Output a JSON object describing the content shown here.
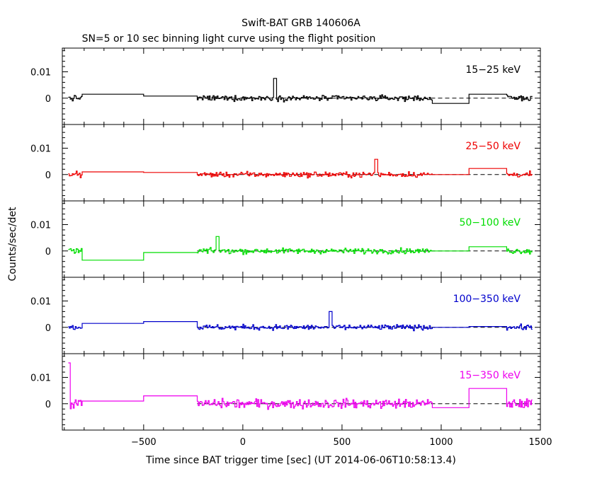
{
  "title": "Swift-BAT GRB 140606A",
  "subtitle": "SN=5 or 10 sec binning light curve using the flight position",
  "colors": {
    "axis": "#000000",
    "panels": [
      "#000000",
      "#ee0000",
      "#00dd00",
      "#0000cc",
      "#ee00ee"
    ]
  },
  "chart_data": {
    "type": "line",
    "title": "Swift-BAT GRB 140606A",
    "subtitle": "SN=5 or 10 sec binning light curve using the flight position",
    "xlabel": "Time since BAT trigger time [sec] (UT 2014-06-06T10:58:13.4)",
    "ylabel": "Counts/sec/det",
    "xlim": [
      -910,
      1500
    ],
    "ylim": [
      -0.01,
      0.019
    ],
    "x_ticks": [
      -500,
      0,
      500,
      1000,
      1500
    ],
    "x_tick_labels": [
      "−500",
      "0",
      "500",
      "1000",
      "1500"
    ],
    "y_ticks": [
      0,
      0.01
    ],
    "y_tick_labels": [
      "0",
      "0.01"
    ],
    "zero_reference": "dashed",
    "panels": [
      {
        "name": "15-25 keV",
        "label": "15−25 keV",
        "color": "#000000",
        "steps": [
          [
            -810,
            -500,
            0.0015
          ],
          [
            -500,
            -230,
            0.0008
          ],
          [
            955,
            1140,
            -0.002
          ],
          [
            1140,
            1330,
            0.0015
          ]
        ],
        "noisy_segments": [
          [
            -880,
            -810,
            0.0023
          ],
          [
            -230,
            955,
            0.0023
          ],
          [
            1330,
            1460,
            0.0023
          ]
        ],
        "peak": [
          160,
          0.0075
        ]
      },
      {
        "name": "25-50 keV",
        "label": "25−50 keV",
        "color": "#ee0000",
        "steps": [
          [
            -810,
            -500,
            0.001
          ],
          [
            -500,
            -230,
            0.0008
          ],
          [
            955,
            1140,
            0.0
          ],
          [
            1140,
            1330,
            0.0023
          ]
        ],
        "noisy_segments": [
          [
            -880,
            -810,
            0.0023
          ],
          [
            -230,
            955,
            0.0023
          ],
          [
            1330,
            1460,
            0.0023
          ]
        ],
        "peak": [
          670,
          0.0058
        ]
      },
      {
        "name": "50-100 keV",
        "label": "50−100 keV",
        "color": "#00dd00",
        "steps": [
          [
            -810,
            -500,
            -0.0035
          ],
          [
            -500,
            -230,
            -0.0006
          ],
          [
            955,
            1140,
            0.0
          ],
          [
            1140,
            1330,
            0.0016
          ]
        ],
        "noisy_segments": [
          [
            -880,
            -810,
            0.0023
          ],
          [
            -230,
            955,
            0.0023
          ],
          [
            1330,
            1460,
            0.0023
          ]
        ],
        "peak": [
          -130,
          0.0055
        ]
      },
      {
        "name": "100-350 keV",
        "label": "100−350 keV",
        "color": "#0000cc",
        "steps": [
          [
            -810,
            -500,
            0.0015
          ],
          [
            -500,
            -230,
            0.0022
          ],
          [
            955,
            1140,
            0.0
          ],
          [
            1140,
            1330,
            0.0003
          ]
        ],
        "noisy_segments": [
          [
            -880,
            -810,
            0.0023
          ],
          [
            -230,
            955,
            0.0023
          ],
          [
            1330,
            1460,
            0.0023
          ]
        ],
        "peak": [
          440,
          0.006
        ]
      },
      {
        "name": "15-350 keV",
        "label": "15−350 keV",
        "color": "#ee00ee",
        "steps": [
          [
            -810,
            -500,
            0.001
          ],
          [
            -500,
            -230,
            0.003
          ],
          [
            955,
            1140,
            -0.0015
          ],
          [
            1140,
            1330,
            0.0058
          ]
        ],
        "noisy_segments": [
          [
            -880,
            -810,
            0.004
          ],
          [
            -230,
            955,
            0.004
          ],
          [
            1330,
            1460,
            0.004
          ]
        ],
        "peak": [
          -880,
          0.0155
        ]
      }
    ]
  }
}
